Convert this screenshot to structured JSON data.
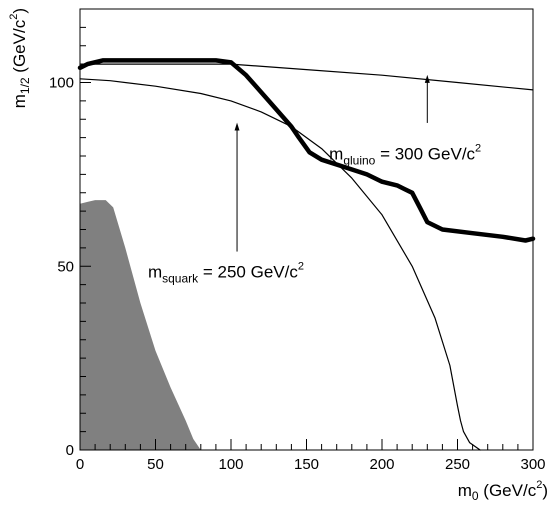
{
  "chart_data": {
    "type": "line",
    "xlabel": {
      "main": "m",
      "sub": "0",
      "unit": " (GeV/c",
      "sup": "2",
      "close": ")"
    },
    "ylabel": {
      "main": "m",
      "sub": "1/2",
      "unit": " (GeV/c",
      "sup": "2",
      "close": ")"
    },
    "xlim": [
      0,
      300
    ],
    "ylim": [
      0,
      120
    ],
    "x_ticks": [
      "0",
      "50",
      "100",
      "150",
      "200",
      "250",
      "300"
    ],
    "y_ticks": [
      "0",
      "50",
      "100"
    ],
    "grid": false,
    "series": [
      {
        "style": "thick",
        "x": [
          0,
          5,
          15,
          25,
          45,
          70,
          90,
          100,
          110,
          125,
          140,
          145,
          152,
          160,
          175,
          190,
          200,
          210,
          215,
          220,
          225,
          230,
          240,
          260,
          280,
          295,
          300
        ],
        "y": [
          104,
          105,
          106,
          106,
          106,
          106,
          106,
          105.5,
          102,
          95,
          88,
          85,
          81,
          79,
          77,
          75,
          73,
          72,
          71,
          70,
          66,
          62,
          60,
          59,
          58,
          57,
          57.5
        ]
      },
      {
        "style": "thin",
        "x": [
          0,
          50,
          100,
          150,
          200,
          250,
          300
        ],
        "y": [
          105,
          105,
          105,
          103.5,
          102,
          100,
          98
        ]
      },
      {
        "style": "thin",
        "x": [
          0,
          20,
          50,
          80,
          100,
          120,
          140,
          160,
          180,
          200,
          220,
          235,
          245,
          250,
          252,
          254,
          258,
          265
        ],
        "y": [
          101,
          100.5,
          99,
          97,
          95,
          92,
          88,
          82,
          74,
          64,
          50,
          36,
          23,
          12,
          8,
          5,
          2,
          0
        ]
      }
    ],
    "excluded_region": {
      "x": [
        0,
        5,
        10,
        17,
        22,
        30,
        40,
        50,
        60,
        70,
        75,
        80,
        0
      ],
      "y": [
        67,
        67.5,
        68,
        68,
        66,
        55,
        40,
        27,
        17,
        8,
        3,
        0,
        0
      ]
    },
    "annotations": [
      {
        "main": "m",
        "sub": "gluino",
        "rest": " = 300 GeV/c",
        "sup": "2",
        "text_x": 165,
        "text_y": 79,
        "arrow_from": [
          230,
          89
        ],
        "arrow_to": [
          230,
          101
        ]
      },
      {
        "main": "m",
        "sub": "squark",
        "rest": " = 250 GeV/c",
        "sup": "2",
        "text_x": 45,
        "text_y": 47,
        "arrow_from": [
          104,
          54
        ],
        "arrow_to": [
          104,
          88
        ]
      }
    ]
  }
}
